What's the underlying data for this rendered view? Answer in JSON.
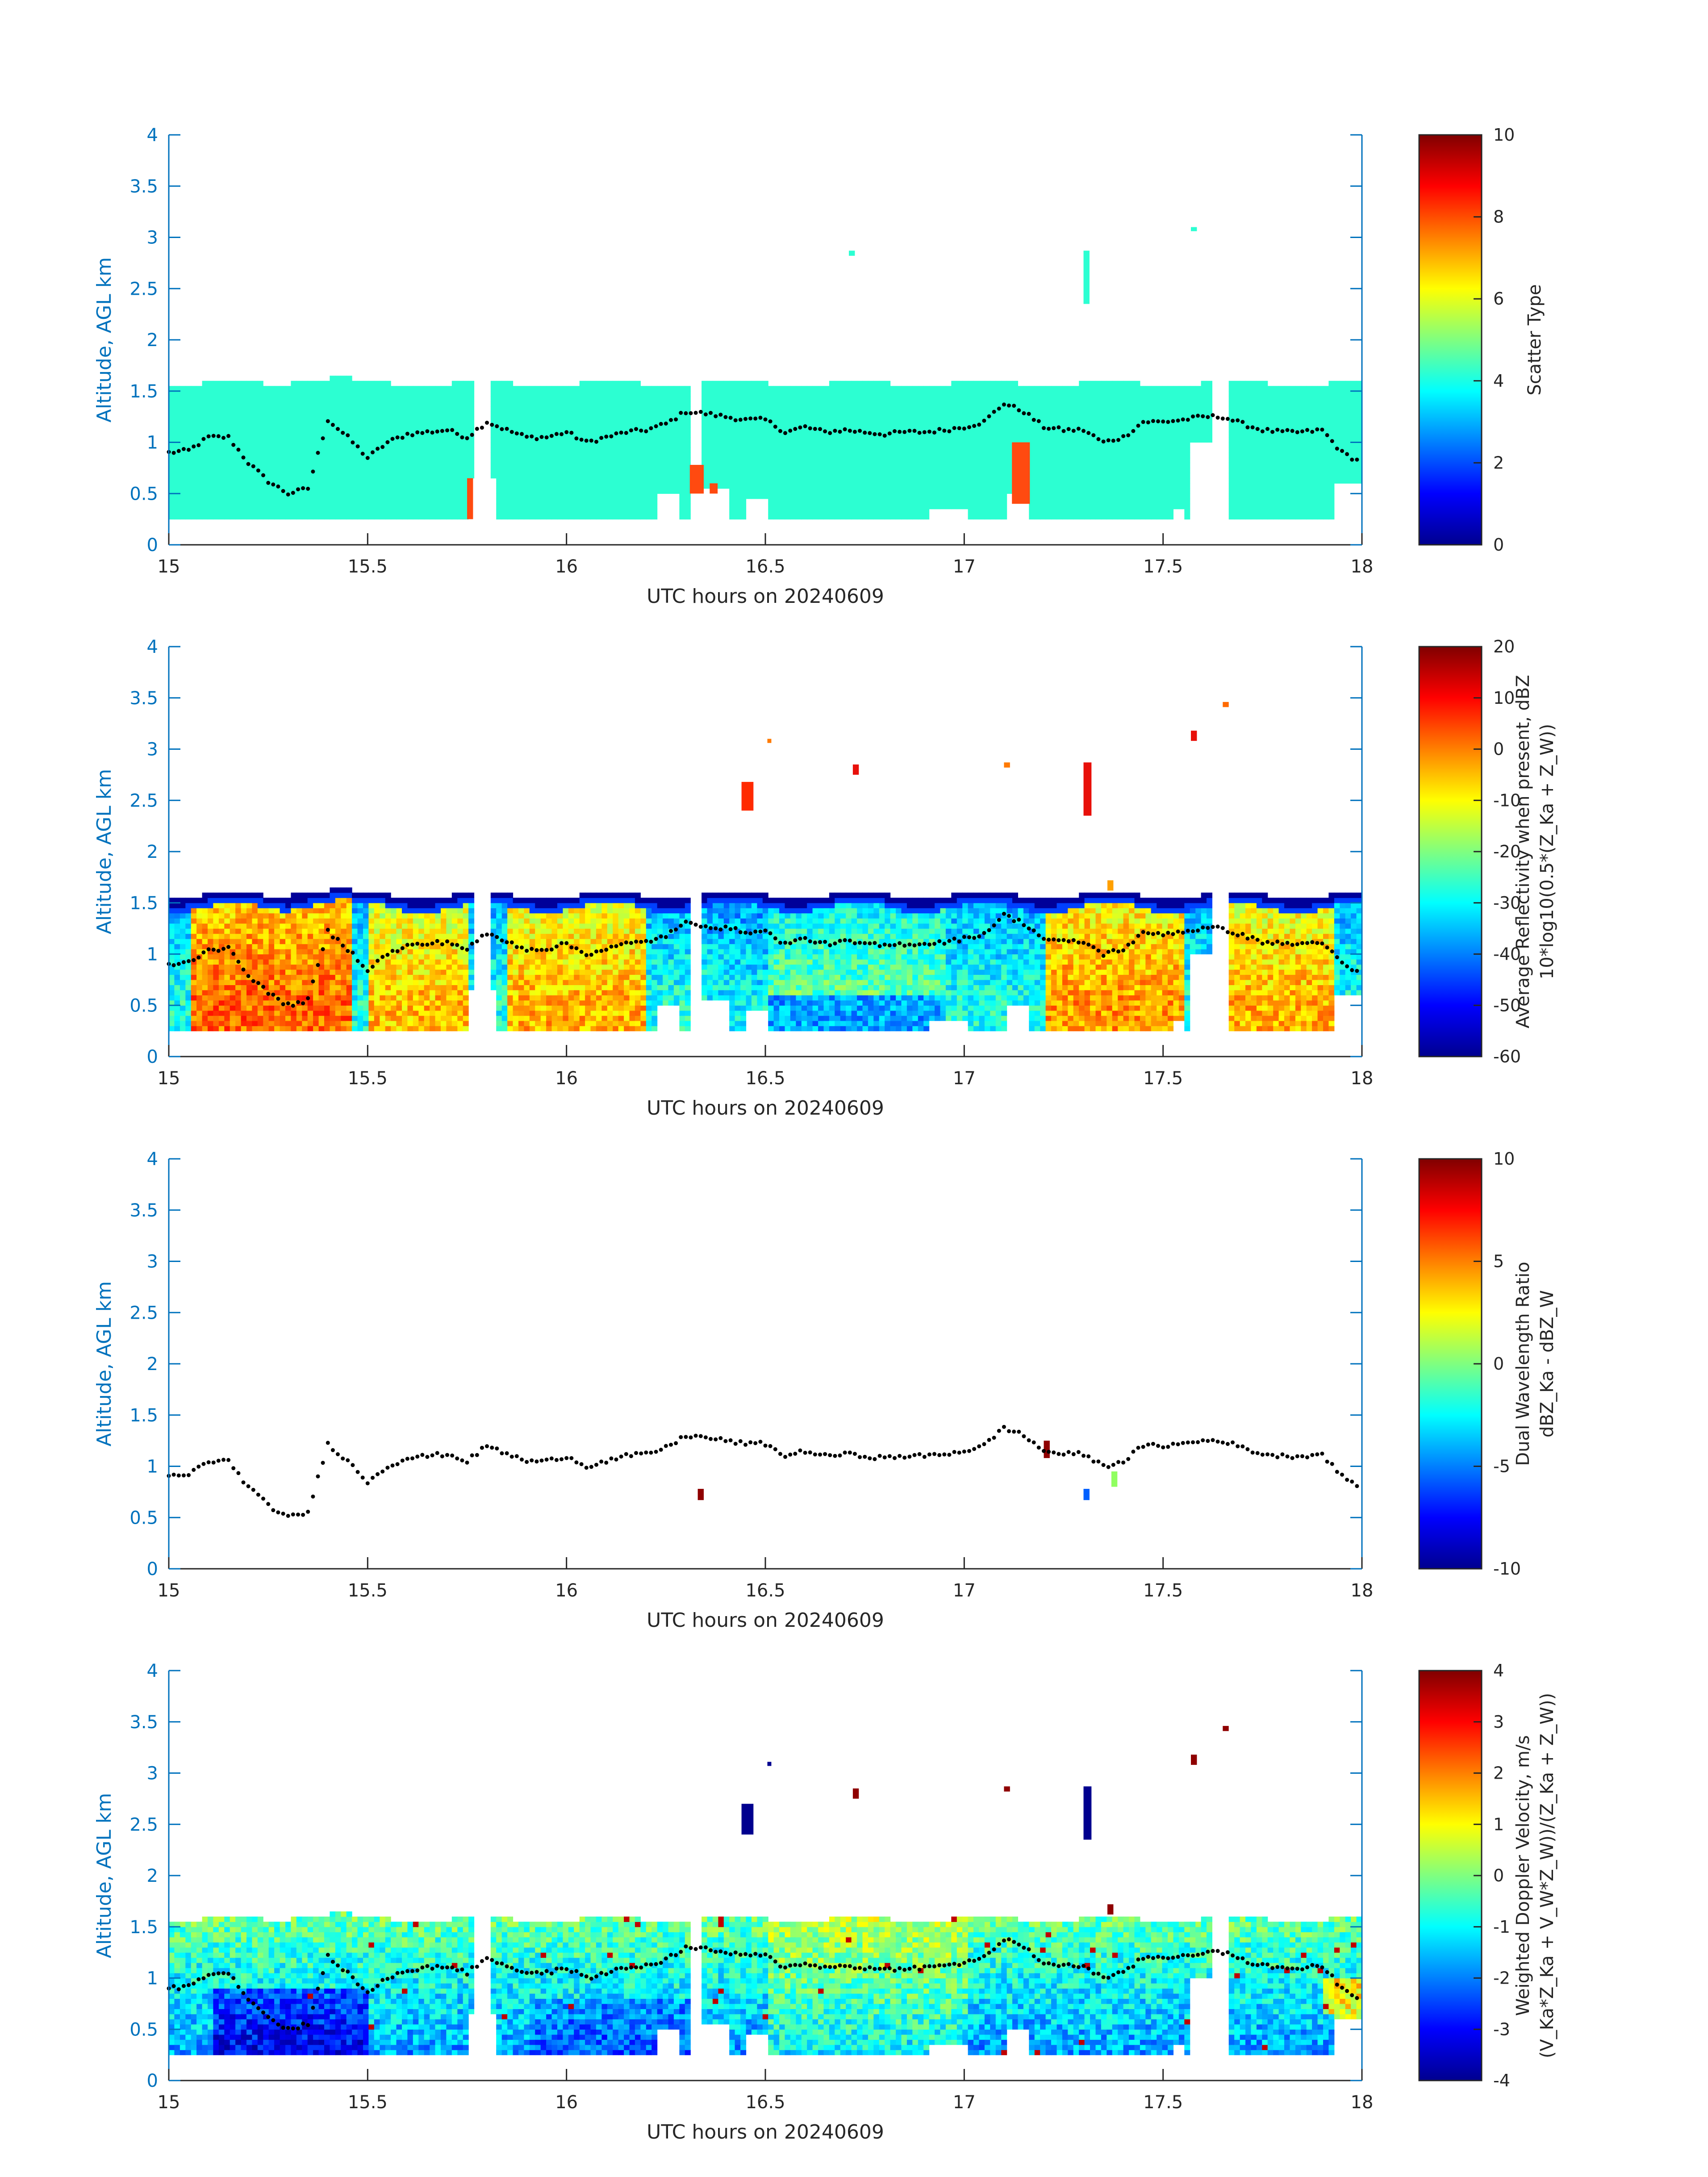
{
  "chart_data": [
    {
      "type": "heatmap",
      "panel": "scatter-type",
      "xlabel": "UTC hours on 20240609",
      "ylabel": "Altitude, AGL km",
      "xlim": [
        15,
        18
      ],
      "ylim": [
        0,
        4
      ],
      "xticks": [
        "15",
        "15.5",
        "16",
        "16.5",
        "17",
        "17.5",
        "18"
      ],
      "yticks": [
        "0",
        "0.5",
        "1",
        "1.5",
        "2",
        "2.5",
        "3",
        "3.5",
        "4"
      ],
      "colorbar": {
        "label_lines": [
          "Scatter Type"
        ],
        "clim": [
          0,
          10
        ],
        "ticks": [
          "0",
          "2",
          "4",
          "6",
          "8",
          "10"
        ]
      }
    },
    {
      "type": "heatmap",
      "panel": "reflectivity",
      "xlabel": "UTC hours on 20240609",
      "ylabel": "Altitude, AGL km",
      "xlim": [
        15,
        18
      ],
      "ylim": [
        0,
        4
      ],
      "xticks": [
        "15",
        "15.5",
        "16",
        "16.5",
        "17",
        "17.5",
        "18"
      ],
      "yticks": [
        "0",
        "0.5",
        "1",
        "1.5",
        "2",
        "2.5",
        "3",
        "3.5",
        "4"
      ],
      "colorbar": {
        "label_lines": [
          "Average Reflectivity when present, dBZ",
          "10*log10(0.5*(Z_Ka + Z_W))"
        ],
        "clim": [
          -60,
          20
        ],
        "ticks": [
          "-60",
          "-50",
          "-40",
          "-30",
          "-20",
          "-10",
          "0",
          "10",
          "20"
        ]
      }
    },
    {
      "type": "heatmap",
      "panel": "dual-wavelength-ratio",
      "xlabel": "UTC hours on 20240609",
      "ylabel": "Altitude, AGL km",
      "xlim": [
        15,
        18
      ],
      "ylim": [
        0,
        4
      ],
      "xticks": [
        "15",
        "15.5",
        "16",
        "16.5",
        "17",
        "17.5",
        "18"
      ],
      "yticks": [
        "0",
        "0.5",
        "1",
        "1.5",
        "2",
        "2.5",
        "3",
        "3.5",
        "4"
      ],
      "colorbar": {
        "label_lines": [
          "Dual Wavelength Ratio",
          "dBZ_Ka - dBZ_W"
        ],
        "clim": [
          -10,
          10
        ],
        "ticks": [
          "-10",
          "-5",
          "0",
          "5",
          "10"
        ]
      }
    },
    {
      "type": "heatmap",
      "panel": "doppler-velocity",
      "xlabel": "UTC hours on 20240609",
      "ylabel": "Altitude, AGL km",
      "xlim": [
        15,
        18
      ],
      "ylim": [
        0,
        4
      ],
      "xticks": [
        "15",
        "15.5",
        "16",
        "16.5",
        "17",
        "17.5",
        "18"
      ],
      "yticks": [
        "0",
        "0.5",
        "1",
        "1.5",
        "2",
        "2.5",
        "3",
        "3.5",
        "4"
      ],
      "colorbar": {
        "label_lines": [
          "Weighted Doppler Velocity, m/s",
          "(V_Ka*Z_Ka + V_W*Z_W))/(Z_Ka + Z_W))"
        ],
        "clim": [
          -4,
          4
        ],
        "ticks": [
          "-4",
          "-3",
          "-2",
          "-1",
          "0",
          "1",
          "2",
          "3",
          "4"
        ]
      }
    }
  ],
  "cloud_base_points": {
    "description_hidden": false,
    "hours": [
      15.0,
      15.05,
      15.1,
      15.15,
      15.2,
      15.25,
      15.3,
      15.35,
      15.4,
      15.45,
      15.5,
      15.55,
      15.6,
      15.65,
      15.7,
      15.75,
      15.8,
      15.85,
      15.9,
      15.95,
      16.0,
      16.05,
      16.1,
      16.15,
      16.2,
      16.25,
      16.3,
      16.35,
      16.4,
      16.45,
      16.5,
      16.55,
      16.6,
      16.65,
      16.7,
      16.75,
      16.8,
      16.85,
      16.9,
      16.95,
      17.0,
      17.05,
      17.1,
      17.15,
      17.2,
      17.25,
      17.3,
      17.35,
      17.4,
      17.45,
      17.5,
      17.55,
      17.6,
      17.65,
      17.7,
      17.75,
      17.8,
      17.85,
      17.9,
      17.95,
      18.0
    ],
    "altitude_km": [
      0.9,
      0.92,
      1.05,
      1.05,
      0.8,
      0.62,
      0.5,
      0.55,
      1.22,
      1.05,
      0.85,
      1.0,
      1.08,
      1.1,
      1.12,
      1.05,
      1.2,
      1.12,
      1.05,
      1.05,
      1.1,
      1.0,
      1.05,
      1.1,
      1.12,
      1.18,
      1.3,
      1.28,
      1.25,
      1.22,
      1.22,
      1.1,
      1.15,
      1.1,
      1.12,
      1.1,
      1.08,
      1.1,
      1.1,
      1.12,
      1.15,
      1.2,
      1.38,
      1.3,
      1.15,
      1.12,
      1.12,
      1.0,
      1.05,
      1.2,
      1.2,
      1.22,
      1.25,
      1.25,
      1.18,
      1.12,
      1.1,
      1.1,
      1.12,
      0.9,
      0.8
    ]
  }
}
